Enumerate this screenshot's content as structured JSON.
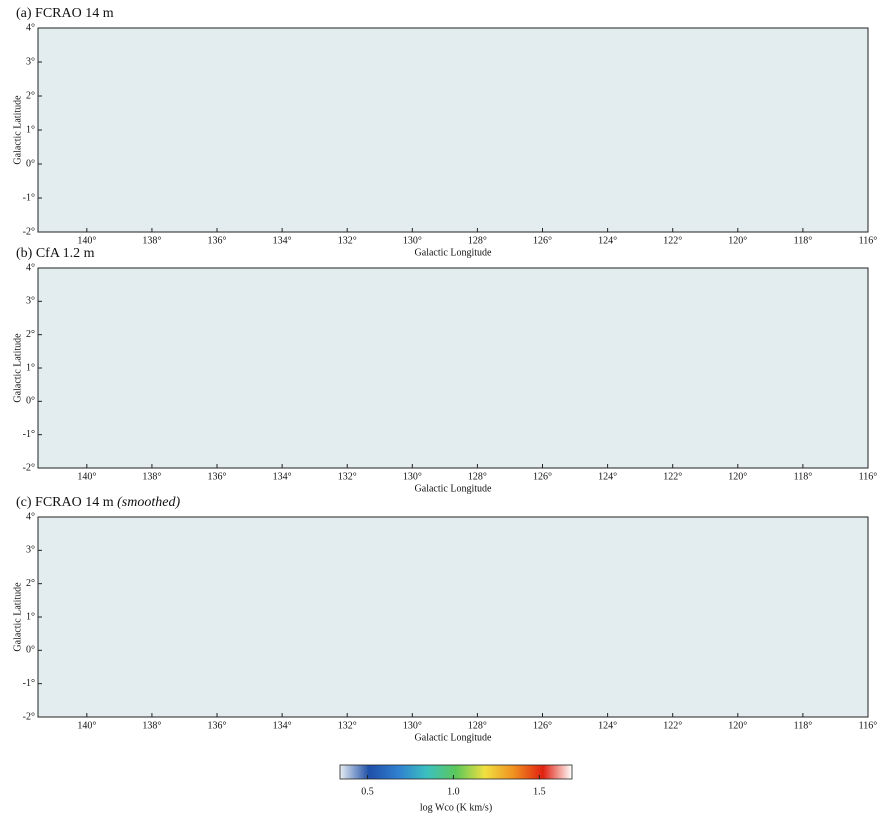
{
  "chart_data": [
    {
      "type": "heatmap",
      "title": "(a)  FCRAO 14 m",
      "xlabel": "Galactic Longitude",
      "ylabel": "Galactic Latitude",
      "xlim": [
        141.5,
        116
      ],
      "ylim": [
        -2,
        4
      ],
      "xticks": [
        {
          "value": 140,
          "label": "140°"
        },
        {
          "value": 138,
          "label": "138°"
        },
        {
          "value": 136,
          "label": "136°"
        },
        {
          "value": 134,
          "label": "134°"
        },
        {
          "value": 132,
          "label": "132°"
        },
        {
          "value": 130,
          "label": "130°"
        },
        {
          "value": 128,
          "label": "128°"
        },
        {
          "value": 126,
          "label": "126°"
        },
        {
          "value": 124,
          "label": "124°"
        },
        {
          "value": 122,
          "label": "122°"
        },
        {
          "value": 120,
          "label": "120°"
        },
        {
          "value": 118,
          "label": "118°"
        },
        {
          "value": 116,
          "label": "116°"
        }
      ],
      "yticks": [
        {
          "value": -2,
          "label": "-2°"
        },
        {
          "value": -1,
          "label": "-1°"
        },
        {
          "value": 0,
          "label": "0°"
        },
        {
          "value": 1,
          "label": "1°"
        },
        {
          "value": 2,
          "label": "2°"
        },
        {
          "value": 3,
          "label": "3°"
        },
        {
          "value": 4,
          "label": "4°"
        }
      ]
    },
    {
      "type": "heatmap",
      "title": "(b) CfA 1.2 m",
      "xlabel": "Galactic Longitude",
      "ylabel": "Galactic Latitude",
      "xlim": [
        141.5,
        116
      ],
      "ylim": [
        -2,
        4
      ],
      "xticks": [
        {
          "value": 140,
          "label": "140°"
        },
        {
          "value": 138,
          "label": "138°"
        },
        {
          "value": 136,
          "label": "136°"
        },
        {
          "value": 134,
          "label": "134°"
        },
        {
          "value": 132,
          "label": "132°"
        },
        {
          "value": 130,
          "label": "130°"
        },
        {
          "value": 128,
          "label": "128°"
        },
        {
          "value": 126,
          "label": "126°"
        },
        {
          "value": 124,
          "label": "124°"
        },
        {
          "value": 122,
          "label": "122°"
        },
        {
          "value": 120,
          "label": "120°"
        },
        {
          "value": 118,
          "label": "118°"
        },
        {
          "value": 116,
          "label": "116°"
        }
      ],
      "yticks": [
        {
          "value": -2,
          "label": "-2°"
        },
        {
          "value": -1,
          "label": "-1°"
        },
        {
          "value": 0,
          "label": "0°"
        },
        {
          "value": 1,
          "label": "1°"
        },
        {
          "value": 2,
          "label": "2°"
        },
        {
          "value": 3,
          "label": "3°"
        },
        {
          "value": 4,
          "label": "4°"
        }
      ]
    },
    {
      "type": "heatmap",
      "title": "(c) FCRAO 14 m",
      "subtitle": "(smoothed)",
      "xlabel": "Galactic Longitude",
      "ylabel": "Galactic Latitude",
      "xlim": [
        141.5,
        116
      ],
      "ylim": [
        -2,
        4
      ],
      "xticks": [
        {
          "value": 140,
          "label": "140°"
        },
        {
          "value": 138,
          "label": "138°"
        },
        {
          "value": 136,
          "label": "136°"
        },
        {
          "value": 134,
          "label": "134°"
        },
        {
          "value": 132,
          "label": "132°"
        },
        {
          "value": 130,
          "label": "130°"
        },
        {
          "value": 128,
          "label": "128°"
        },
        {
          "value": 126,
          "label": "126°"
        },
        {
          "value": 124,
          "label": "124°"
        },
        {
          "value": 122,
          "label": "122°"
        },
        {
          "value": 120,
          "label": "120°"
        },
        {
          "value": 118,
          "label": "118°"
        },
        {
          "value": 116,
          "label": "116°"
        }
      ],
      "yticks": [
        {
          "value": -2,
          "label": "-2°"
        },
        {
          "value": -1,
          "label": "-1°"
        },
        {
          "value": 0,
          "label": "0°"
        },
        {
          "value": 1,
          "label": "1°"
        },
        {
          "value": 2,
          "label": "2°"
        },
        {
          "value": 3,
          "label": "3°"
        },
        {
          "value": 4,
          "label": "4°"
        }
      ]
    },
    {
      "type": "colorbar",
      "label": "log Wco (K km/s)",
      "xlim": [
        0.34,
        1.69
      ],
      "xticks": [
        0.5,
        {
          "value": 1,
          "label": "1.0"
        },
        1.5
      ],
      "colors": [
        "#e6eef2",
        "#1f4fa8",
        "#2f7fd0",
        "#3cc0c0",
        "#5cc85a",
        "#f0e040",
        "#f09020",
        "#e02010",
        "#ffffff"
      ]
    }
  ]
}
